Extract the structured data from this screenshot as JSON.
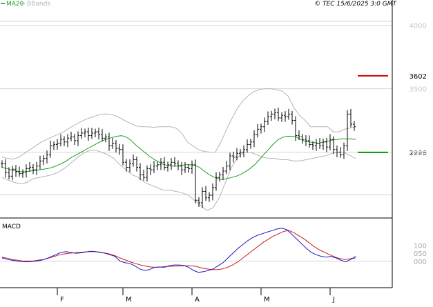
{
  "legend": {
    "ma_label": "MA20",
    "bbands_label": "BBands",
    "ma_color": "#1a9e1a",
    "bb_color": "#b4b4b4"
  },
  "copyright": "© TEC 15/6/2025 3:0 GMT",
  "macd": {
    "title": "MACD",
    "macd_color": "#1a1acc",
    "signal_color": "#cc1a1a"
  },
  "chart_data": [
    {
      "type": "ohlc",
      "title": "",
      "xlabel": "",
      "ylabel": "",
      "ylim": [
        2480,
        4200
      ],
      "yticks": [
        {
          "value": 4000,
          "label": "4000"
        },
        {
          "value": 3500,
          "label": "3500"
        },
        {
          "value": 3000,
          "label": "3000"
        }
      ],
      "xticks": [
        {
          "i": 16,
          "label": "F"
        },
        {
          "i": 35,
          "label": "M"
        },
        {
          "i": 55,
          "label": "A"
        },
        {
          "i": 75,
          "label": "M"
        },
        {
          "i": 95,
          "label": "J"
        }
      ],
      "levels": [
        {
          "value": 3602,
          "label": "3602",
          "color": "#cc0000"
        },
        {
          "value": 2998,
          "label": "2998",
          "color": "#009900"
        }
      ],
      "grid": true,
      "close": [
        2910,
        2840,
        2810,
        2865,
        2845,
        2830,
        2840,
        2870,
        2880,
        2860,
        2890,
        2930,
        2950,
        2980,
        3050,
        3060,
        3070,
        3100,
        3080,
        3110,
        3120,
        3090,
        3130,
        3150,
        3160,
        3130,
        3150,
        3160,
        3140,
        3110,
        3120,
        3050,
        3070,
        3030,
        3020,
        2920,
        2880,
        2910,
        2940,
        2880,
        2820,
        2800,
        2870,
        2860,
        2890,
        2900,
        2920,
        2880,
        2900,
        2920,
        2910,
        2890,
        2860,
        2880,
        2870,
        2900,
        2620,
        2600,
        2690,
        2640,
        2660,
        2720,
        2800,
        2820,
        2850,
        2890,
        2970,
        2960,
        2990,
        3000,
        3020,
        3060,
        3080,
        3140,
        3180,
        3200,
        3240,
        3280,
        3300,
        3310,
        3270,
        3290,
        3280,
        3300,
        3250,
        3130,
        3120,
        3100,
        3090,
        3060,
        3050,
        3070,
        3050,
        3080,
        3040,
        3100,
        3020,
        3000,
        2980,
        3050,
        3300,
        3220,
        3200
      ],
      "series": [
        {
          "name": "MA20",
          "values": [
            2880,
            2870,
            2860,
            2850,
            2845,
            2845,
            2850,
            2855,
            2860,
            2865,
            2870,
            2880,
            2895,
            2910,
            2930,
            2955,
            2975,
            2995,
            3015,
            3035,
            3055,
            3075,
            3092,
            3105,
            3115,
            3125,
            3130,
            3120,
            3095,
            3060,
            3030,
            3000,
            2970,
            2945,
            2925,
            2905,
            2895,
            2890,
            2890,
            2895,
            2900,
            2900,
            2895,
            2880,
            2850,
            2825,
            2805,
            2790,
            2785,
            2790,
            2800,
            2810,
            2825,
            2845,
            2870,
            2900,
            2940,
            2980,
            3020,
            3060,
            3095,
            3115,
            3125,
            3125,
            3120,
            3100,
            3085,
            3080,
            3075,
            3070,
            3080,
            3085,
            3095,
            3100,
            3105,
            3105,
            3105,
            3100
          ]
        },
        {
          "name": "BBands upper",
          "values": [
            2960,
            2950,
            2945,
            2960,
            2990,
            3020,
            3050,
            3080,
            3100,
            3120,
            3140,
            3160,
            3190,
            3215,
            3240,
            3260,
            3275,
            3290,
            3300,
            3300,
            3290,
            3270,
            3245,
            3225,
            3205,
            3200,
            3200,
            3195,
            3200,
            3200,
            3200,
            3190,
            3150,
            3080,
            3050,
            3020,
            3005,
            3000,
            3000,
            3080,
            3180,
            3270,
            3350,
            3410,
            3450,
            3480,
            3495,
            3500,
            3500,
            3490,
            3480,
            3440,
            3350,
            3290,
            3250,
            3200,
            3200,
            3200,
            3200,
            3160,
            3160,
            3180,
            3190,
            3200
          ]
        },
        {
          "name": "BBands lower",
          "values": [
            2800,
            2780,
            2760,
            2750,
            2760,
            2790,
            2800,
            2810,
            2820,
            2840,
            2870,
            2910,
            2950,
            2990,
            3010,
            3015,
            3000,
            2980,
            2950,
            2900,
            2860,
            2820,
            2800,
            2760,
            2740,
            2720,
            2700,
            2700,
            2690,
            2680,
            2660,
            2620,
            2580,
            2540,
            2560,
            2640,
            2760,
            2880,
            2960,
            3000,
            3000,
            2980,
            2960,
            2950,
            2950,
            2940,
            2940,
            2930,
            2930,
            2940,
            2950,
            2960,
            2970,
            2985,
            3000,
            3000,
            2975,
            2950
          ]
        }
      ]
    },
    {
      "type": "line",
      "title": "MACD",
      "xlabel": "",
      "ylabel": "",
      "ylim": [
        -170,
        275
      ],
      "yticks": [
        {
          "value": 100,
          "label": "100"
        },
        {
          "value": 50,
          "label": "050"
        },
        {
          "value": 0,
          "label": "000"
        }
      ],
      "series": [
        {
          "name": "MACD",
          "values": [
            20,
            12,
            5,
            0,
            -3,
            -5,
            -3,
            0,
            5,
            15,
            28,
            42,
            55,
            60,
            55,
            50,
            52,
            58,
            62,
            60,
            55,
            50,
            40,
            30,
            0,
            -10,
            -15,
            -30,
            -50,
            -60,
            -55,
            -40,
            -38,
            -40,
            -30,
            -25,
            -25,
            -28,
            -40,
            -60,
            -72,
            -68,
            -60,
            -50,
            -30,
            -10,
            20,
            50,
            80,
            105,
            130,
            150,
            165,
            175,
            185,
            195,
            205,
            210,
            200,
            170,
            140,
            110,
            80,
            55,
            40,
            30,
            25,
            30,
            20,
            5,
            -5,
            10,
            30
          ]
        },
        {
          "name": "Signal",
          "values": [
            25,
            18,
            10,
            5,
            0,
            0,
            0,
            5,
            10,
            18,
            28,
            38,
            45,
            50,
            52,
            55,
            58,
            60,
            60,
            58,
            52,
            45,
            35,
            20,
            8,
            -5,
            -15,
            -25,
            -32,
            -38,
            -40,
            -38,
            -35,
            -33,
            -32,
            -30,
            -30,
            -30,
            -35,
            -45,
            -50,
            -55,
            -55,
            -50,
            -40,
            -25,
            -5,
            20,
            45,
            70,
            95,
            120,
            140,
            160,
            175,
            190,
            195,
            180,
            160,
            140,
            115,
            90,
            70,
            55,
            40,
            25,
            15,
            10,
            15,
            20
          ]
        }
      ]
    }
  ]
}
